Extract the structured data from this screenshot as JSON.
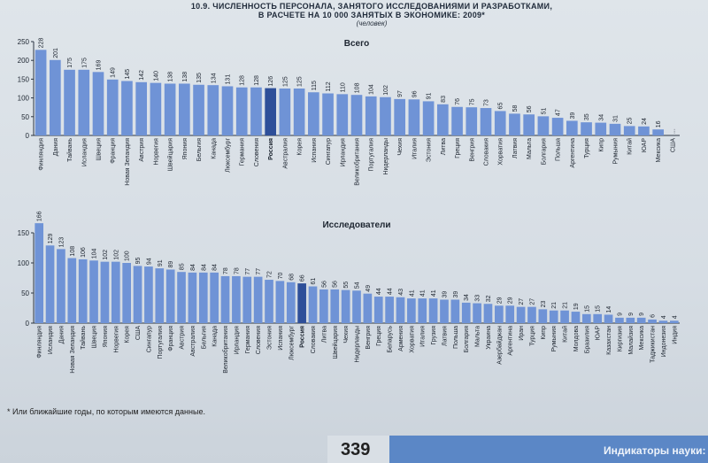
{
  "header": {
    "line1": "10.9. ЧИСЛЕННОСТЬ ПЕРСОНАЛА, ЗАНЯТОГО ИССЛЕДОВАНИЯМИ И РАЗРАБОТКАМИ,",
    "line2": "В РАСЧЕТЕ НА 10 000 ЗАНЯТЫХ В ЭКОНОМИКЕ: 2009*",
    "unit": "(человек)"
  },
  "colors": {
    "bar": "#6f93d6",
    "russia_bar": "#2e4f99",
    "axis": "#2b3542"
  },
  "chart_data": [
    {
      "type": "bar",
      "title": "Всего",
      "ylim": [
        0,
        250
      ],
      "yticks": [
        0,
        50,
        100,
        150,
        200,
        250
      ],
      "highlight": "Россия",
      "categories": [
        "Финляндия",
        "Дания",
        "Тайвань",
        "Исландия",
        "Швеция",
        "Франция",
        "Новая Зеландия",
        "Австрия",
        "Норвегия",
        "Швейцария",
        "Япония",
        "Бельгия",
        "Канада",
        "Люксембург",
        "Германия",
        "Словения",
        "Россия",
        "Австралия",
        "Корея",
        "Испания",
        "Сингапур",
        "Ирландия",
        "Великобритания",
        "Португалия",
        "Нидерланды",
        "Чехия",
        "Италия",
        "Эстония",
        "Литва",
        "Греция",
        "Венгрия",
        "Словакия",
        "Хорватия",
        "Латвия",
        "Мальта",
        "Болгария",
        "Польша",
        "Аргентина",
        "Турция",
        "Кипр",
        "Румыния",
        "Китай",
        "ЮАР",
        "Мексика",
        "США"
      ],
      "values": [
        228,
        201,
        175,
        175,
        169,
        149,
        145,
        142,
        140,
        138,
        138,
        135,
        134,
        131,
        128,
        128,
        126,
        125,
        125,
        115,
        112,
        110,
        108,
        104,
        102,
        97,
        96,
        91,
        83,
        76,
        75,
        73,
        65,
        58,
        56,
        51,
        47,
        39,
        35,
        34,
        31,
        25,
        24,
        16,
        null
      ],
      "value_labels": [
        "228",
        "201",
        "175",
        "175",
        "169",
        "149",
        "145",
        "142",
        "140",
        "138",
        "138",
        "135",
        "134",
        "131",
        "128",
        "128",
        "126",
        "125",
        "125",
        "115",
        "112",
        "110",
        "108",
        "104",
        "102",
        "97",
        "96",
        "91",
        "83",
        "76",
        "75",
        "73",
        "65",
        "58",
        "56",
        "51",
        "47",
        "39",
        "35",
        "34",
        "31",
        "25",
        "24",
        "16",
        "..."
      ]
    },
    {
      "type": "bar",
      "title": "Исследователи",
      "ylim": [
        0,
        150
      ],
      "yticks": [
        0,
        50,
        100,
        150
      ],
      "highlight": "Россия",
      "categories": [
        "Финляндия",
        "Исландия",
        "Дания",
        "Новая Зеландия",
        "Тайвань",
        "Швеция",
        "Япония",
        "Норвегия",
        "Корея",
        "США",
        "Сингапур",
        "Португалия",
        "Франция",
        "Австрия",
        "Австралия",
        "Бельгия",
        "Канада",
        "Великобритания",
        "Ирландия",
        "Германия",
        "Словения",
        "Эстония",
        "Испания",
        "Люксембург",
        "Россия",
        "Словакия",
        "Литва",
        "Швейцария",
        "Чехия",
        "Нидерланды",
        "Венгрия",
        "Греция",
        "Беларусь",
        "Армения",
        "Хорватия",
        "Италия",
        "Грузия",
        "Латвия",
        "Польша",
        "Болгария",
        "Мальта",
        "Украина",
        "Азербайджан",
        "Аргентина",
        "Иран",
        "Турция",
        "Кипр",
        "Румыния",
        "Китай",
        "Молдова",
        "Бразилия",
        "ЮАР",
        "Казахстан",
        "Киргизия",
        "Малайзия",
        "Мексика",
        "Таджикистан",
        "Индонезия",
        "Индия"
      ],
      "values": [
        166,
        129,
        123,
        108,
        106,
        104,
        102,
        102,
        100,
        95,
        94,
        91,
        89,
        85,
        84,
        84,
        84,
        78,
        78,
        77,
        77,
        72,
        70,
        68,
        66,
        61,
        56,
        56,
        55,
        54,
        49,
        44,
        44,
        43,
        41,
        41,
        41,
        39,
        39,
        34,
        33,
        32,
        29,
        29,
        27,
        27,
        23,
        21,
        21,
        19,
        15,
        15,
        14,
        9,
        9,
        9,
        6,
        4,
        4
      ],
      "value_labels": [
        "166",
        "129",
        "123",
        "108",
        "106",
        "104",
        "102",
        "102",
        "100",
        "95",
        "94",
        "91",
        "89",
        "85",
        "84",
        "84",
        "84",
        "78",
        "78",
        "77",
        "77",
        "72",
        "70",
        "68",
        "66",
        "61",
        "56",
        "56",
        "55",
        "54",
        "49",
        "44",
        "44",
        "43",
        "41",
        "41",
        "41",
        "39",
        "39",
        "34",
        "33",
        "32",
        "29",
        "29",
        "27",
        "27",
        "23",
        "21",
        "21",
        "19",
        "15",
        "15",
        "14",
        "9",
        "9",
        "9",
        "6",
        "4",
        "4"
      ]
    }
  ],
  "footnote": "* Или ближайшие годы, по которым имеются данные.",
  "footer": {
    "page_number": "339",
    "section": "Индикаторы науки:"
  }
}
